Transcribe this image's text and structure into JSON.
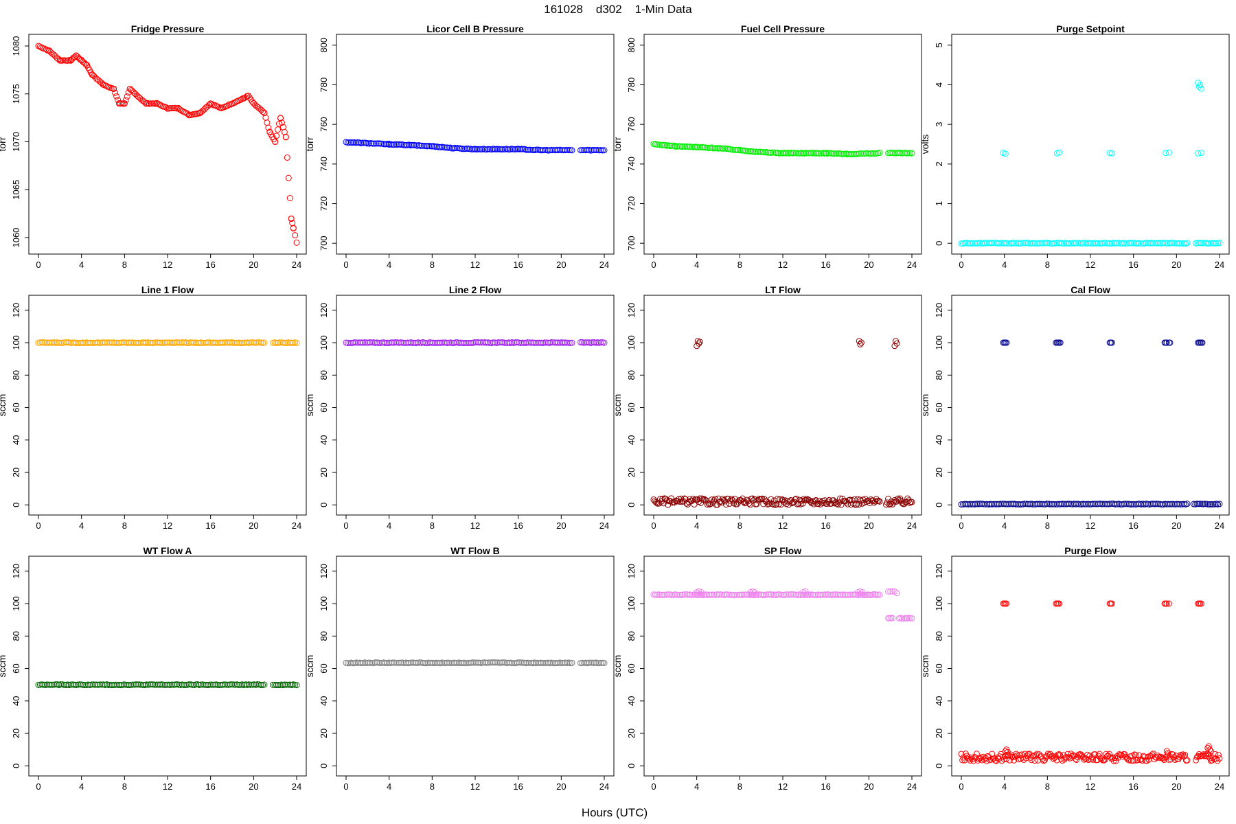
{
  "figure": {
    "title": "161028    d302    1-Min Data",
    "xlabel": "Hours (UTC)"
  },
  "chart_data": [
    {
      "type": "scatter",
      "title": "Fridge Pressure",
      "ylabel": "torr",
      "color": "#ff0000",
      "xlim": [
        0,
        24
      ],
      "ylim": [
        1059,
        1080.5
      ],
      "xticks": [
        0,
        4,
        8,
        12,
        16,
        20,
        24
      ],
      "yticks": [
        1060,
        1065,
        1070,
        1075,
        1080
      ],
      "series": [
        {
          "shape": "line",
          "x": [
            0,
            1,
            2,
            3,
            3.5,
            4,
            4.5,
            5,
            6,
            7,
            7.5,
            8,
            8.5,
            9,
            10,
            11,
            12,
            13,
            14,
            15,
            16,
            17,
            18,
            19,
            19.5,
            20,
            21,
            21.5,
            22,
            22.5,
            23,
            23.5,
            23.7,
            24
          ],
          "y": [
            1080,
            1079.5,
            1078.5,
            1078.5,
            1079,
            1078.5,
            1078,
            1077,
            1076,
            1075.5,
            1074,
            1074,
            1075.5,
            1075,
            1074,
            1074,
            1073.5,
            1073.5,
            1072.8,
            1073,
            1074,
            1073.5,
            1074,
            1074.5,
            1074.8,
            1074,
            1073,
            1071,
            1070,
            1072.5,
            1070.5,
            1062,
            1061,
            1059.5
          ]
        }
      ]
    },
    {
      "type": "scatter",
      "title": "Licor Cell B Pressure",
      "ylabel": "torr",
      "color": "#0000ff",
      "xlim": [
        0,
        24
      ],
      "ylim": [
        698,
        802
      ],
      "xticks": [
        0,
        4,
        8,
        12,
        16,
        20,
        24
      ],
      "yticks": [
        700,
        720,
        740,
        760,
        780,
        800
      ],
      "series": [
        {
          "shape": "line",
          "x": [
            0,
            2,
            4,
            6,
            8,
            10,
            12,
            14,
            16,
            18,
            21
          ],
          "y": [
            751,
            750.5,
            750,
            749.5,
            749,
            748,
            747.5,
            747.5,
            747.5,
            747,
            747
          ]
        },
        {
          "shape": "line",
          "x": [
            21.8,
            24
          ],
          "y": [
            747,
            747
          ]
        }
      ]
    },
    {
      "type": "scatter",
      "title": "Fuel Cell Pressure",
      "ylabel": "torr",
      "color": "#00ee00",
      "xlim": [
        0,
        24
      ],
      "ylim": [
        698,
        802
      ],
      "xticks": [
        0,
        4,
        8,
        12,
        16,
        20,
        24
      ],
      "yticks": [
        700,
        720,
        740,
        760,
        780,
        800
      ],
      "series": [
        {
          "shape": "line",
          "x": [
            0,
            2,
            4,
            6,
            8,
            10,
            12,
            14,
            16,
            18,
            21
          ],
          "y": [
            750,
            749,
            748.5,
            748,
            747,
            746,
            745.5,
            745.5,
            745.5,
            745,
            745.5
          ]
        },
        {
          "shape": "line",
          "x": [
            21.8,
            24
          ],
          "y": [
            745.5,
            745.5
          ]
        }
      ]
    },
    {
      "type": "scatter",
      "title": "Purge Setpoint",
      "ylabel": "volts",
      "color": "#00ffff",
      "xlim": [
        0,
        24
      ],
      "ylim": [
        -0.1,
        5.1
      ],
      "xticks": [
        0,
        4,
        8,
        12,
        16,
        20,
        24
      ],
      "yticks": [
        0,
        1,
        2,
        3,
        4,
        5
      ],
      "series": [
        {
          "shape": "line",
          "x": [
            0,
            21
          ],
          "y": [
            0,
            0
          ]
        },
        {
          "shape": "line",
          "x": [
            21.8,
            24
          ],
          "y": [
            0,
            0
          ]
        },
        {
          "shape": "points",
          "x": [
            3.9,
            4.1,
            8.9,
            9.1,
            13.8,
            14,
            19,
            19.3,
            22,
            22.3
          ],
          "y": [
            2.28,
            2.26,
            2.27,
            2.29,
            2.28,
            2.27,
            2.28,
            2.29,
            2.27,
            2.28
          ]
        },
        {
          "shape": "points",
          "x": [
            22,
            22.1,
            22.2,
            22.3
          ],
          "y": [
            4.05,
            3.95,
            4.0,
            3.9
          ]
        }
      ]
    },
    {
      "type": "scatter",
      "title": "Line 1 Flow",
      "ylabel": "sccm",
      "color": "#ffa500",
      "xlim": [
        0,
        24
      ],
      "ylim": [
        -2,
        125
      ],
      "xticks": [
        0,
        4,
        8,
        12,
        16,
        20,
        24
      ],
      "yticks": [
        0,
        20,
        40,
        60,
        80,
        100,
        120
      ],
      "series": [
        {
          "shape": "line",
          "x": [
            0,
            21
          ],
          "y": [
            100,
            100
          ]
        },
        {
          "shape": "line",
          "x": [
            21.8,
            24
          ],
          "y": [
            100,
            100
          ]
        }
      ]
    },
    {
      "type": "scatter",
      "title": "Line 2 Flow",
      "ylabel": "sccm",
      "color": "#a020f0",
      "xlim": [
        0,
        24
      ],
      "ylim": [
        -2,
        125
      ],
      "xticks": [
        0,
        4,
        8,
        12,
        16,
        20,
        24
      ],
      "yticks": [
        0,
        20,
        40,
        60,
        80,
        100,
        120
      ],
      "series": [
        {
          "shape": "line",
          "x": [
            0,
            21
          ],
          "y": [
            100,
            100
          ]
        },
        {
          "shape": "line",
          "x": [
            21.8,
            24
          ],
          "y": [
            100,
            100
          ]
        }
      ]
    },
    {
      "type": "scatter",
      "title": "LT Flow",
      "ylabel": "sccm",
      "color": "#8b0000",
      "xlim": [
        0,
        24
      ],
      "ylim": [
        -2,
        125
      ],
      "xticks": [
        0,
        4,
        8,
        12,
        16,
        20,
        24
      ],
      "yticks": [
        0,
        20,
        40,
        60,
        80,
        100,
        120
      ],
      "series": [
        {
          "shape": "band",
          "x": [
            0,
            21
          ],
          "y": [
            0,
            4
          ]
        },
        {
          "shape": "band",
          "x": [
            21.6,
            24
          ],
          "y": [
            0,
            4
          ]
        },
        {
          "shape": "points",
          "x": [
            4.0,
            4.1,
            4.2,
            4.3,
            19.1,
            19.2,
            19.3,
            22.4,
            22.5,
            22.6
          ],
          "y": [
            98,
            101,
            99.5,
            100.5,
            101,
            99,
            100,
            98,
            101,
            99.5
          ]
        }
      ]
    },
    {
      "type": "scatter",
      "title": "Cal Flow",
      "ylabel": "sccm",
      "color": "#00008b",
      "xlim": [
        0,
        24
      ],
      "ylim": [
        -2,
        125
      ],
      "xticks": [
        0,
        4,
        8,
        12,
        16,
        20,
        24
      ],
      "yticks": [
        0,
        20,
        40,
        60,
        80,
        100,
        120
      ],
      "series": [
        {
          "shape": "line",
          "x": [
            0,
            21
          ],
          "y": [
            0.5,
            0.5
          ]
        },
        {
          "shape": "line",
          "x": [
            21.6,
            24
          ],
          "y": [
            0.5,
            0.5
          ]
        },
        {
          "shape": "points",
          "x": [
            3.9,
            4.0,
            4.1,
            4.2,
            8.8,
            8.9,
            9.0,
            9.1,
            9.2,
            13.8,
            13.9,
            14.0,
            18.9,
            19.0,
            19.1,
            19.3,
            19.4,
            22.0,
            22.1,
            22.2,
            22.3,
            22.4
          ],
          "y": [
            100,
            100,
            100,
            100,
            100,
            100,
            100,
            100,
            100,
            100,
            100,
            100,
            100,
            100,
            100,
            100,
            100,
            100,
            100,
            100,
            100,
            100
          ]
        }
      ]
    },
    {
      "type": "scatter",
      "title": "WT Flow A",
      "ylabel": "sccm",
      "color": "#006400",
      "xlim": [
        0,
        24
      ],
      "ylim": [
        -2,
        125
      ],
      "xticks": [
        0,
        4,
        8,
        12,
        16,
        20,
        24
      ],
      "yticks": [
        0,
        20,
        40,
        60,
        80,
        100,
        120
      ],
      "series": [
        {
          "shape": "line",
          "x": [
            0,
            21
          ],
          "y": [
            50,
            50
          ]
        },
        {
          "shape": "line",
          "x": [
            21.8,
            24
          ],
          "y": [
            50,
            50
          ]
        }
      ]
    },
    {
      "type": "scatter",
      "title": "WT Flow B",
      "ylabel": "sccm",
      "color": "#808080",
      "xlim": [
        0,
        24
      ],
      "ylim": [
        -2,
        125
      ],
      "xticks": [
        0,
        4,
        8,
        12,
        16,
        20,
        24
      ],
      "yticks": [
        0,
        20,
        40,
        60,
        80,
        100,
        120
      ],
      "series": [
        {
          "shape": "line",
          "x": [
            0,
            21
          ],
          "y": [
            63.5,
            63.5
          ]
        },
        {
          "shape": "line",
          "x": [
            21.8,
            24
          ],
          "y": [
            63.5,
            63.5
          ]
        }
      ]
    },
    {
      "type": "scatter",
      "title": "SP Flow",
      "ylabel": "sccm",
      "color": "#ee82ee",
      "xlim": [
        0,
        24
      ],
      "ylim": [
        -2,
        125
      ],
      "xticks": [
        0,
        4,
        8,
        12,
        16,
        20,
        24
      ],
      "yticks": [
        0,
        20,
        40,
        60,
        80,
        100,
        120
      ],
      "series": [
        {
          "shape": "line",
          "x": [
            0,
            4,
            4.5,
            9,
            9.5,
            14,
            14.5,
            19,
            19.8,
            21
          ],
          "y": [
            105.5,
            105.5,
            105.5,
            105.5,
            105.5,
            105.5,
            105.5,
            105.5,
            105.5,
            105.5
          ]
        },
        {
          "shape": "points",
          "x": [
            4.0,
            4.2,
            4.4,
            9.0,
            9.2,
            9.4,
            13.9,
            14.1,
            19.0,
            19.2,
            19.4,
            21.8,
            22.0,
            22.2,
            22.4,
            22.6
          ],
          "y": [
            107,
            107.5,
            107,
            107,
            107.5,
            107,
            107,
            107.5,
            107,
            107.5,
            107,
            107.5,
            107.5,
            107.5,
            107.5,
            106.5
          ]
        },
        {
          "shape": "line",
          "x": [
            21.8,
            22.2
          ],
          "y": [
            91,
            91
          ]
        },
        {
          "shape": "line",
          "x": [
            22.8,
            24
          ],
          "y": [
            91,
            91
          ]
        }
      ]
    },
    {
      "type": "scatter",
      "title": "Purge Flow",
      "ylabel": "sccm",
      "color": "#ff0000",
      "xlim": [
        0,
        24
      ],
      "ylim": [
        -2,
        125
      ],
      "xticks": [
        0,
        4,
        8,
        12,
        16,
        20,
        24
      ],
      "yticks": [
        0,
        20,
        40,
        60,
        80,
        100,
        120
      ],
      "series": [
        {
          "shape": "band",
          "x": [
            0,
            21
          ],
          "y": [
            3,
            7.5
          ]
        },
        {
          "shape": "band",
          "x": [
            21.8,
            24
          ],
          "y": [
            3,
            7.5
          ]
        },
        {
          "shape": "points",
          "x": [
            3.9,
            4.0,
            4.1,
            4.2,
            8.8,
            8.9,
            9.0,
            9.1,
            13.8,
            13.9,
            14.0,
            18.9,
            19.0,
            19.1,
            19.3,
            22.0,
            22.1,
            22.2,
            22.3
          ],
          "y": [
            100,
            100,
            100,
            100,
            100,
            100,
            100,
            100,
            100,
            100,
            100,
            100,
            100,
            100,
            100,
            100,
            100,
            100,
            100
          ]
        },
        {
          "shape": "points",
          "x": [
            4.1,
            4.2,
            4.3,
            19.1,
            19.2,
            22.9,
            23.0,
            23.1,
            23.2
          ],
          "y": [
            9,
            10,
            8.5,
            9,
            8,
            11,
            12,
            10,
            9
          ]
        }
      ]
    }
  ]
}
